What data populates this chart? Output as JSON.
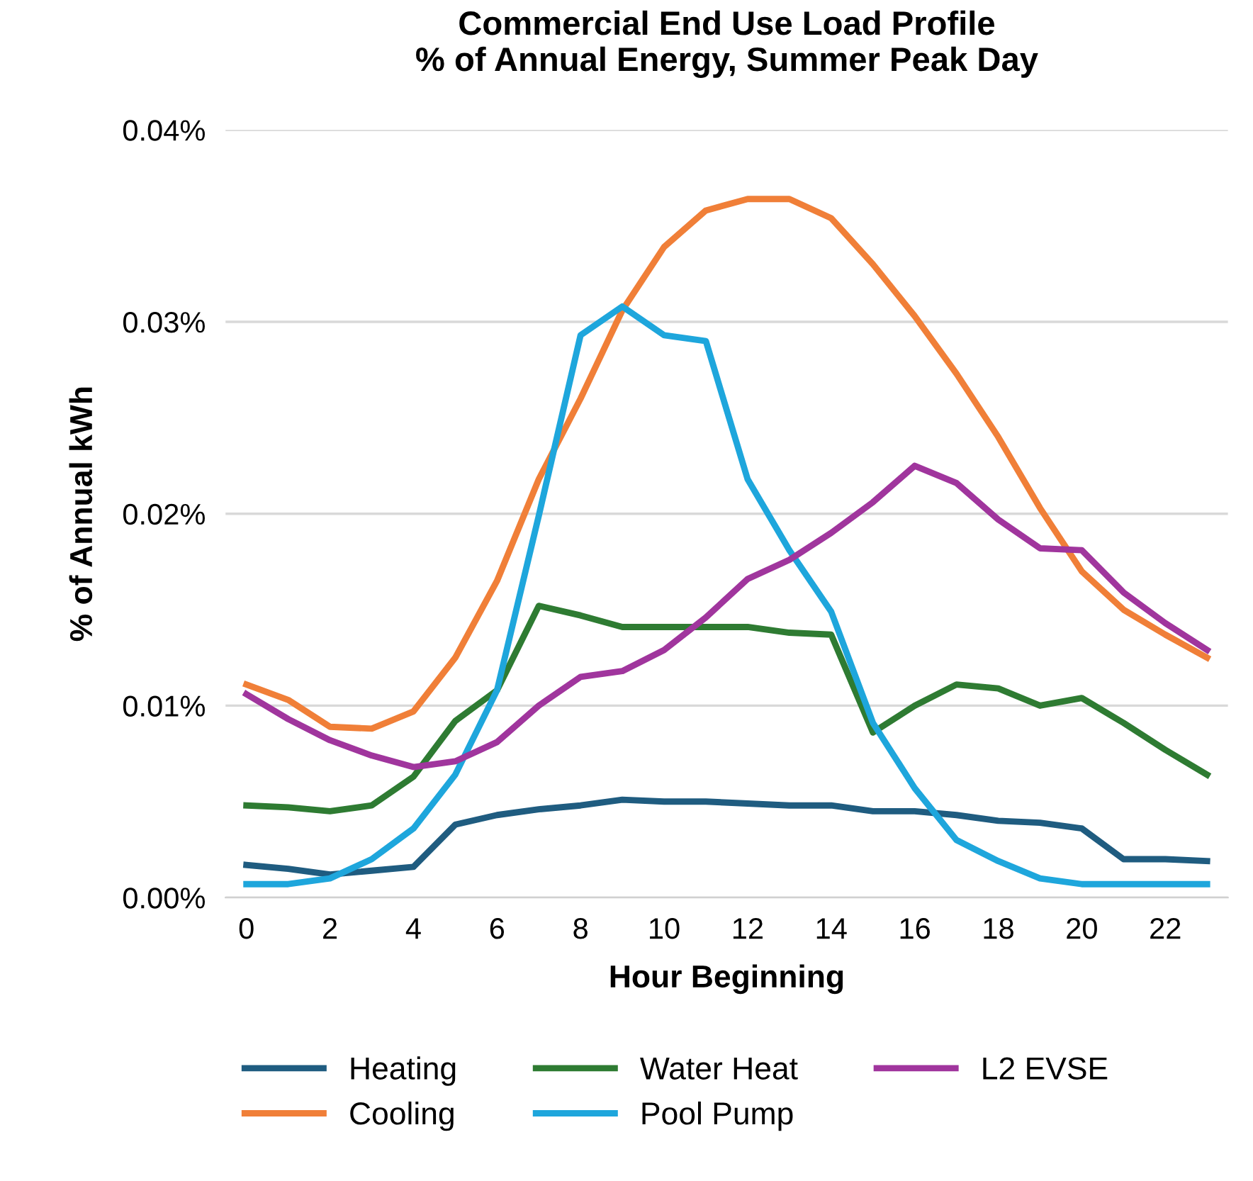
{
  "chart_data": {
    "type": "line",
    "title": "Commercial End Use Load Profile\n% of Annual Energy, Summer Peak Day",
    "xlabel": "Hour Beginning",
    "ylabel": "% of Annual kWh",
    "x": [
      0,
      1,
      2,
      3,
      4,
      5,
      6,
      7,
      8,
      9,
      10,
      11,
      12,
      13,
      14,
      15,
      16,
      17,
      18,
      19,
      20,
      21,
      22,
      23
    ],
    "xlim": [
      -0.5,
      23.5
    ],
    "xticks": [
      0,
      2,
      4,
      6,
      8,
      10,
      12,
      14,
      16,
      18,
      20,
      22
    ],
    "ylim": [
      0,
      0.04
    ],
    "yticks": [
      {
        "value": 0,
        "label": "0.00%"
      },
      {
        "value": 0.01,
        "label": "0.01%"
      },
      {
        "value": 0.02,
        "label": "0.02%"
      },
      {
        "value": 0.03,
        "label": "0.03%"
      },
      {
        "value": 0.04,
        "label": "0.04%"
      }
    ],
    "grid": "y",
    "legend": "bottom",
    "marker": "none",
    "line_style": "solid",
    "series": [
      {
        "name": "Heating",
        "color": "#1f5c80",
        "values": [
          0.0017,
          0.0015,
          0.0012,
          0.0014,
          0.0016,
          0.0038,
          0.0043,
          0.0046,
          0.0048,
          0.0051,
          0.005,
          0.005,
          0.0049,
          0.0048,
          0.0048,
          0.0045,
          0.0045,
          0.0043,
          0.004,
          0.0039,
          0.0036,
          0.002,
          0.002,
          0.0019
        ]
      },
      {
        "name": "Cooling",
        "color": "#f07f38",
        "values": [
          0.0111,
          0.0103,
          0.0089,
          0.0088,
          0.0097,
          0.0125,
          0.0165,
          0.0218,
          0.026,
          0.0306,
          0.0339,
          0.0358,
          0.0364,
          0.0364,
          0.0354,
          0.033,
          0.0303,
          0.0273,
          0.024,
          0.0203,
          0.017,
          0.015,
          0.0137,
          0.0125
        ]
      },
      {
        "name": "Water Heat",
        "color": "#2e7b32",
        "values": [
          0.0048,
          0.0047,
          0.0045,
          0.0048,
          0.0063,
          0.0092,
          0.0108,
          0.0152,
          0.0147,
          0.0141,
          0.0141,
          0.0141,
          0.0141,
          0.0138,
          0.0137,
          0.0086,
          0.01,
          0.0111,
          0.0109,
          0.01,
          0.0104,
          0.0091,
          0.0077,
          0.0064
        ]
      },
      {
        "name": "Pool Pump",
        "color": "#1ea6dc",
        "values": [
          0.0007,
          0.0007,
          0.001,
          0.002,
          0.0036,
          0.0064,
          0.0108,
          0.0199,
          0.0293,
          0.0308,
          0.0293,
          0.029,
          0.0218,
          0.0181,
          0.0149,
          0.0091,
          0.0057,
          0.003,
          0.0019,
          0.001,
          0.0007,
          0.0007,
          0.0007,
          0.0007
        ]
      },
      {
        "name": "L2 EVSE",
        "color": "#a0359d",
        "values": [
          0.0106,
          0.0093,
          0.0082,
          0.0074,
          0.0068,
          0.0071,
          0.0081,
          0.01,
          0.0115,
          0.0118,
          0.0129,
          0.0146,
          0.0166,
          0.0176,
          0.019,
          0.0206,
          0.0225,
          0.0216,
          0.0197,
          0.0182,
          0.0181,
          0.0159,
          0.0143,
          0.0129
        ]
      }
    ]
  }
}
